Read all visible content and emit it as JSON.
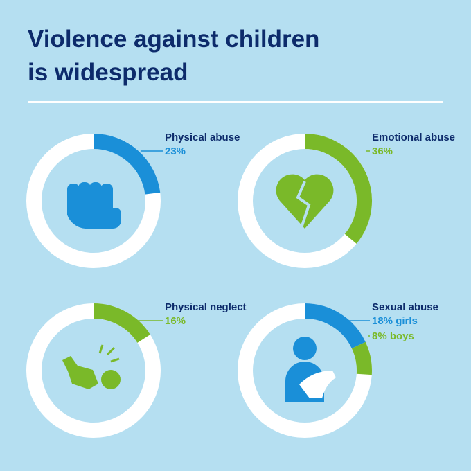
{
  "title": [
    "Violence against children",
    "is widespread"
  ],
  "chart_data": [
    {
      "type": "donut",
      "title": "Physical abuse",
      "values": [
        23
      ],
      "value_labels": [
        "23%"
      ],
      "colors": [
        "#1a8fd8"
      ]
    },
    {
      "type": "donut",
      "title": "Emotional abuse",
      "values": [
        36
      ],
      "value_labels": [
        "36%"
      ],
      "colors": [
        "#7ab929"
      ]
    },
    {
      "type": "donut",
      "title": "Physical neglect",
      "values": [
        16
      ],
      "value_labels": [
        "16%"
      ],
      "colors": [
        "#7ab929"
      ]
    },
    {
      "type": "donut",
      "title": "Sexual abuse",
      "values": [
        18,
        8
      ],
      "value_labels": [
        "18% girls",
        "8% boys"
      ],
      "colors": [
        "#1a8fd8",
        "#7ab929"
      ]
    }
  ]
}
